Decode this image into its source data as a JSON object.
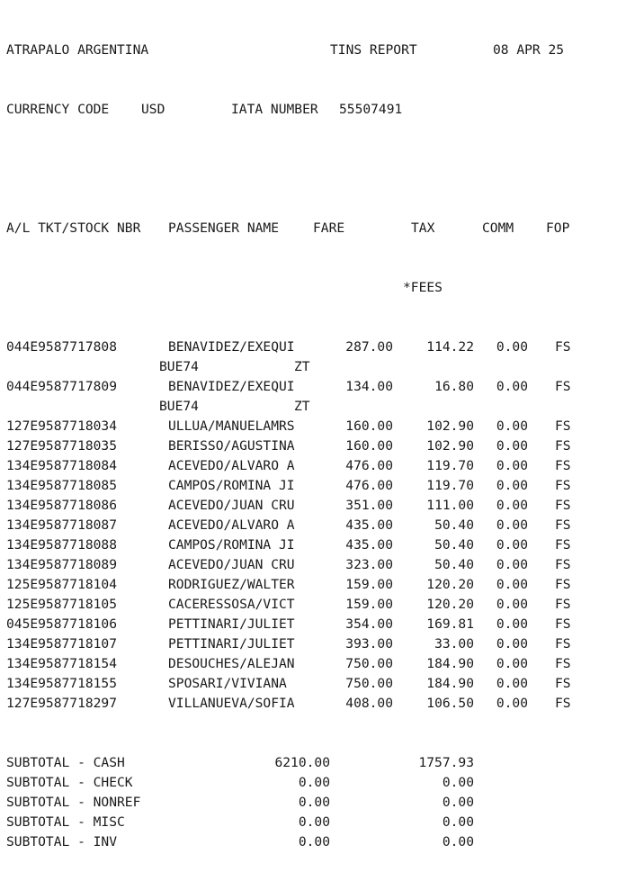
{
  "header": {
    "agency": "ATRAPALO ARGENTINA",
    "report_title": "TINS REPORT",
    "date": "08 APR 25",
    "currency_label": "CURRENCY CODE",
    "currency": "USD",
    "iata_label": "IATA NUMBER",
    "iata_number": "55507491"
  },
  "columns": {
    "al_ticket": "A/L TKT/STOCK NBR",
    "passenger": "PASSENGER NAME",
    "fare": "FARE",
    "tax": "TAX",
    "fees": "*FEES",
    "comm": "COMM",
    "fop": "FOP"
  },
  "rows": [
    {
      "ticket": "044E9587717808",
      "passenger": "BENAVIDEZ/EXEQUI",
      "fare": "287.00",
      "tax": "114.22",
      "comm": "0.00",
      "fop": "FS",
      "cont_left": "BUE74",
      "cont_right": "ZT"
    },
    {
      "ticket": "044E9587717809",
      "passenger": "BENAVIDEZ/EXEQUI",
      "fare": "134.00",
      "tax": "16.80",
      "comm": "0.00",
      "fop": "FS",
      "cont_left": "BUE74",
      "cont_right": "ZT"
    },
    {
      "ticket": "127E9587718034",
      "passenger": "ULLUA/MANUELAMRS",
      "fare": "160.00",
      "tax": "102.90",
      "comm": "0.00",
      "fop": "FS"
    },
    {
      "ticket": "127E9587718035",
      "passenger": "BERISSO/AGUSTINA",
      "fare": "160.00",
      "tax": "102.90",
      "comm": "0.00",
      "fop": "FS"
    },
    {
      "ticket": "134E9587718084",
      "passenger": "ACEVEDO/ALVARO A",
      "fare": "476.00",
      "tax": "119.70",
      "comm": "0.00",
      "fop": "FS"
    },
    {
      "ticket": "134E9587718085",
      "passenger": "CAMPOS/ROMINA JI",
      "fare": "476.00",
      "tax": "119.70",
      "comm": "0.00",
      "fop": "FS"
    },
    {
      "ticket": "134E9587718086",
      "passenger": "ACEVEDO/JUAN CRU",
      "fare": "351.00",
      "tax": "111.00",
      "comm": "0.00",
      "fop": "FS"
    },
    {
      "ticket": "134E9587718087",
      "passenger": "ACEVEDO/ALVARO A",
      "fare": "435.00",
      "tax": "50.40",
      "comm": "0.00",
      "fop": "FS"
    },
    {
      "ticket": "134E9587718088",
      "passenger": "CAMPOS/ROMINA JI",
      "fare": "435.00",
      "tax": "50.40",
      "comm": "0.00",
      "fop": "FS"
    },
    {
      "ticket": "134E9587718089",
      "passenger": "ACEVEDO/JUAN CRU",
      "fare": "323.00",
      "tax": "50.40",
      "comm": "0.00",
      "fop": "FS"
    },
    {
      "ticket": "125E9587718104",
      "passenger": "RODRIGUEZ/WALTER",
      "fare": "159.00",
      "tax": "120.20",
      "comm": "0.00",
      "fop": "FS"
    },
    {
      "ticket": "125E9587718105",
      "passenger": "CACERESSOSA/VICT",
      "fare": "159.00",
      "tax": "120.20",
      "comm": "0.00",
      "fop": "FS"
    },
    {
      "ticket": "045E9587718106",
      "passenger": "PETTINARI/JULIET",
      "fare": "354.00",
      "tax": "169.81",
      "comm": "0.00",
      "fop": "FS"
    },
    {
      "ticket": "134E9587718107",
      "passenger": "PETTINARI/JULIET",
      "fare": "393.00",
      "tax": "33.00",
      "comm": "0.00",
      "fop": "FS"
    },
    {
      "ticket": "134E9587718154",
      "passenger": "DESOUCHES/ALEJAN",
      "fare": "750.00",
      "tax": "184.90",
      "comm": "0.00",
      "fop": "FS"
    },
    {
      "ticket": "134E9587718155",
      "passenger": "SPOSARI/VIVIANA",
      "fare": "750.00",
      "tax": "184.90",
      "comm": "0.00",
      "fop": "FS"
    },
    {
      "ticket": "127E9587718297",
      "passenger": "VILLANUEVA/SOFIA",
      "fare": "408.00",
      "tax": "106.50",
      "comm": "0.00",
      "fop": "FS"
    }
  ],
  "subtotals": [
    {
      "label": "SUBTOTAL - CASH",
      "fare": "6210.00",
      "tax": "1757.93"
    },
    {
      "label": "SUBTOTAL - CHECK",
      "fare": "0.00",
      "tax": "0.00"
    },
    {
      "label": "SUBTOTAL - NONREF",
      "fare": "0.00",
      "tax": "0.00"
    },
    {
      "label": "SUBTOTAL - MISC",
      "fare": "0.00",
      "tax": "0.00"
    },
    {
      "label": "SUBTOTAL - INV",
      "fare": "0.00",
      "tax": "0.00"
    }
  ]
}
